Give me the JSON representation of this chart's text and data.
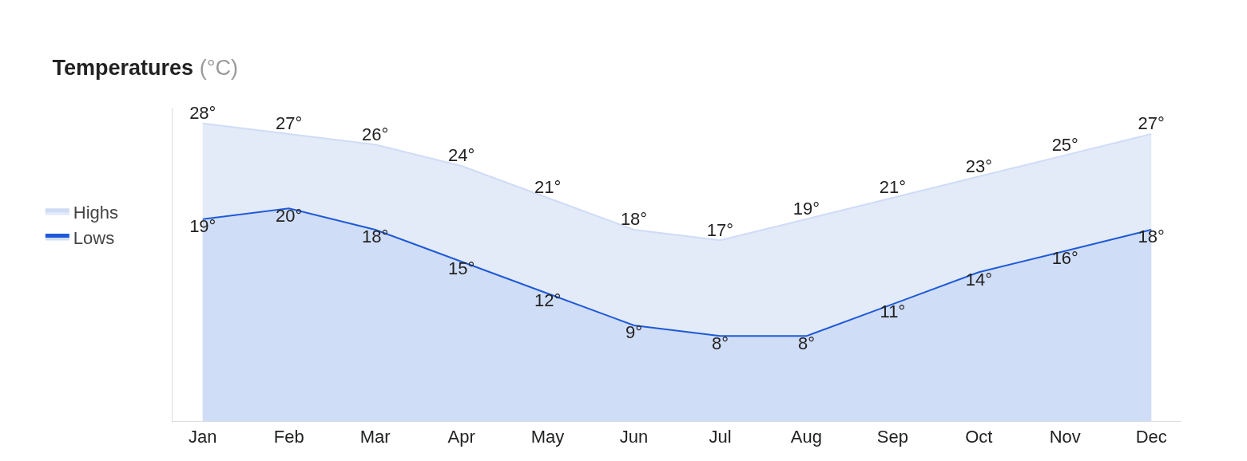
{
  "chart_data": {
    "type": "area",
    "title": "Temperatures",
    "subtitle": "(°C)",
    "categories": [
      "Jan",
      "Feb",
      "Mar",
      "Apr",
      "May",
      "Jun",
      "Jul",
      "Aug",
      "Sep",
      "Oct",
      "Nov",
      "Dec"
    ],
    "series": [
      {
        "name": "Highs",
        "color": "#cfdcf6",
        "values": [
          28,
          27,
          26,
          24,
          21,
          18,
          17,
          19,
          21,
          23,
          25,
          27
        ],
        "value_labels": [
          "28°",
          "27°",
          "26°",
          "24°",
          "21°",
          "18°",
          "17°",
          "19°",
          "21°",
          "23°",
          "25°",
          "27°"
        ]
      },
      {
        "name": "Lows",
        "color": "#1f5ad6",
        "values": [
          19,
          20,
          18,
          15,
          12,
          9,
          8,
          8,
          11,
          14,
          16,
          18
        ],
        "value_labels": [
          "19°",
          "20°",
          "18°",
          "15°",
          "12°",
          "9°",
          "8°",
          "8°",
          "11°",
          "14°",
          "16°",
          "18°"
        ]
      }
    ],
    "grid": false,
    "legend": "left",
    "marker": "none"
  }
}
